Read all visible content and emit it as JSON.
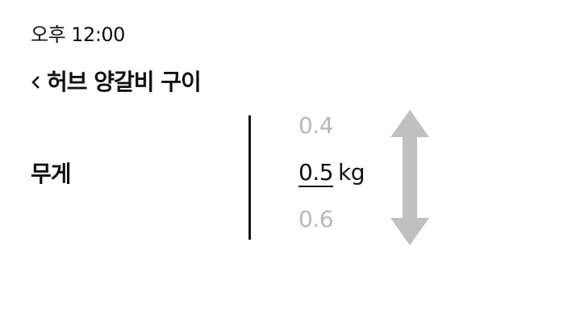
{
  "status": {
    "time": "오후 12:00"
  },
  "header": {
    "title": "허브 양갈비 구이"
  },
  "setting": {
    "label": "무게",
    "picker": {
      "previous": "0.4",
      "current": "0.5",
      "unit": "kg",
      "next": "0.6"
    }
  },
  "icons": {
    "back": "chevron-left-icon",
    "scroll": "up-down-arrow-icon"
  },
  "colors": {
    "text": "#111111",
    "inactive": "#b8b8b8",
    "arrow": "#c0c0c0"
  }
}
